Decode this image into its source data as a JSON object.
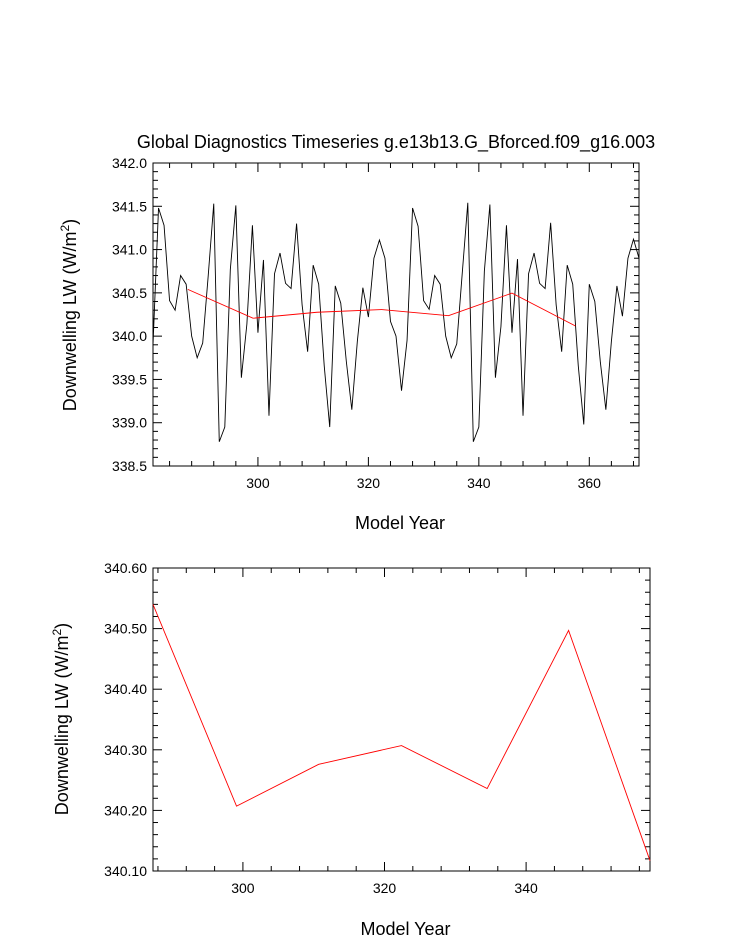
{
  "chart_data": [
    {
      "type": "line",
      "title": "Global Diagnostics Timeseries g.e13b13.G_Bforced.f09_g16.003",
      "xlabel": "Model Year",
      "ylabel": "Downwelling LW (W/m",
      "ylabel_unit_sup": "2",
      "ylabel_close": ")",
      "xlim": [
        281,
        369
      ],
      "ylim": [
        338.5,
        342.0
      ],
      "x_ticks": [
        300,
        320,
        340,
        360
      ],
      "x_tick_labels": [
        "300",
        "320",
        "340",
        "360"
      ],
      "y_ticks": [
        338.5,
        339.0,
        339.5,
        340.0,
        340.5,
        341.0,
        341.5,
        342.0
      ],
      "y_tick_labels": [
        "338.5",
        "339.0",
        "339.5",
        "340.0",
        "340.5",
        "341.0",
        "341.5",
        "342.0"
      ],
      "grid": false,
      "series": [
        {
          "color": "#000000",
          "x": [
            281,
            282,
            283,
            284,
            285,
            286,
            287,
            288,
            289,
            290,
            291,
            292,
            293,
            294,
            295,
            296,
            297,
            298,
            299,
            300,
            301,
            302,
            303,
            304,
            305,
            306,
            307,
            308,
            309,
            310,
            311,
            312,
            313,
            314,
            315,
            316,
            317,
            318,
            319,
            320,
            321,
            322,
            323,
            324,
            325,
            326,
            327,
            328,
            329,
            330,
            331,
            332,
            333,
            334,
            335,
            336,
            337,
            338,
            339,
            340,
            341,
            342,
            343,
            344,
            345,
            346,
            347,
            348,
            349,
            350,
            351,
            352,
            353,
            354,
            355,
            356,
            357,
            358,
            359,
            360,
            361,
            362,
            363,
            364,
            365,
            366,
            367,
            368,
            369
          ],
          "y": [
            339.9,
            341.48,
            341.28,
            340.41,
            340.3,
            340.7,
            340.6,
            340.0,
            339.75,
            339.92,
            340.7,
            341.53,
            338.78,
            338.95,
            340.77,
            341.51,
            339.52,
            340.14,
            341.28,
            340.04,
            340.88,
            339.08,
            340.72,
            340.96,
            340.61,
            340.55,
            341.3,
            340.36,
            339.82,
            340.82,
            340.6,
            339.66,
            338.95,
            340.58,
            340.38,
            339.71,
            339.15,
            339.94,
            340.56,
            340.22,
            340.9,
            341.11,
            340.9,
            340.17,
            340.0,
            339.37,
            339.95,
            341.48,
            341.27,
            340.41,
            340.31,
            340.7,
            340.6,
            340.0,
            339.75,
            339.91,
            340.73,
            341.54,
            338.78,
            338.95,
            340.75,
            341.52,
            339.52,
            340.11,
            341.28,
            340.04,
            340.89,
            339.08,
            340.72,
            340.96,
            340.61,
            340.55,
            341.31,
            340.36,
            339.82,
            340.82,
            340.6,
            339.66,
            338.98,
            340.6,
            340.4,
            339.7,
            339.15,
            339.94,
            340.58,
            340.23,
            340.9,
            341.12,
            340.9
          ]
        },
        {
          "color": "#ff0000",
          "x": [
            287.3,
            299.1,
            310.7,
            322.4,
            334.5,
            346.0,
            357.5
          ],
          "y": [
            340.54,
            340.207,
            340.276,
            340.307,
            340.236,
            340.497,
            340.117
          ]
        }
      ]
    },
    {
      "type": "line",
      "title": "",
      "xlabel": "Model Year",
      "ylabel": "Downwelling LW (W/m",
      "ylabel_unit_sup": "2",
      "ylabel_close": ")",
      "xlim": [
        287.3,
        357.5
      ],
      "ylim": [
        340.1,
        340.6
      ],
      "x_ticks": [
        300,
        320,
        340
      ],
      "x_tick_labels": [
        "300",
        "320",
        "340"
      ],
      "y_ticks": [
        340.1,
        340.2,
        340.3,
        340.4,
        340.5,
        340.6
      ],
      "y_tick_labels": [
        "340.10",
        "340.20",
        "340.30",
        "340.40",
        "340.50",
        "340.60"
      ],
      "grid": false,
      "series": [
        {
          "color": "#ff0000",
          "x": [
            287.3,
            299.1,
            310.7,
            322.4,
            334.5,
            346.0,
            357.5
          ],
          "y": [
            340.54,
            340.207,
            340.276,
            340.307,
            340.236,
            340.497,
            340.117
          ]
        }
      ]
    }
  ]
}
